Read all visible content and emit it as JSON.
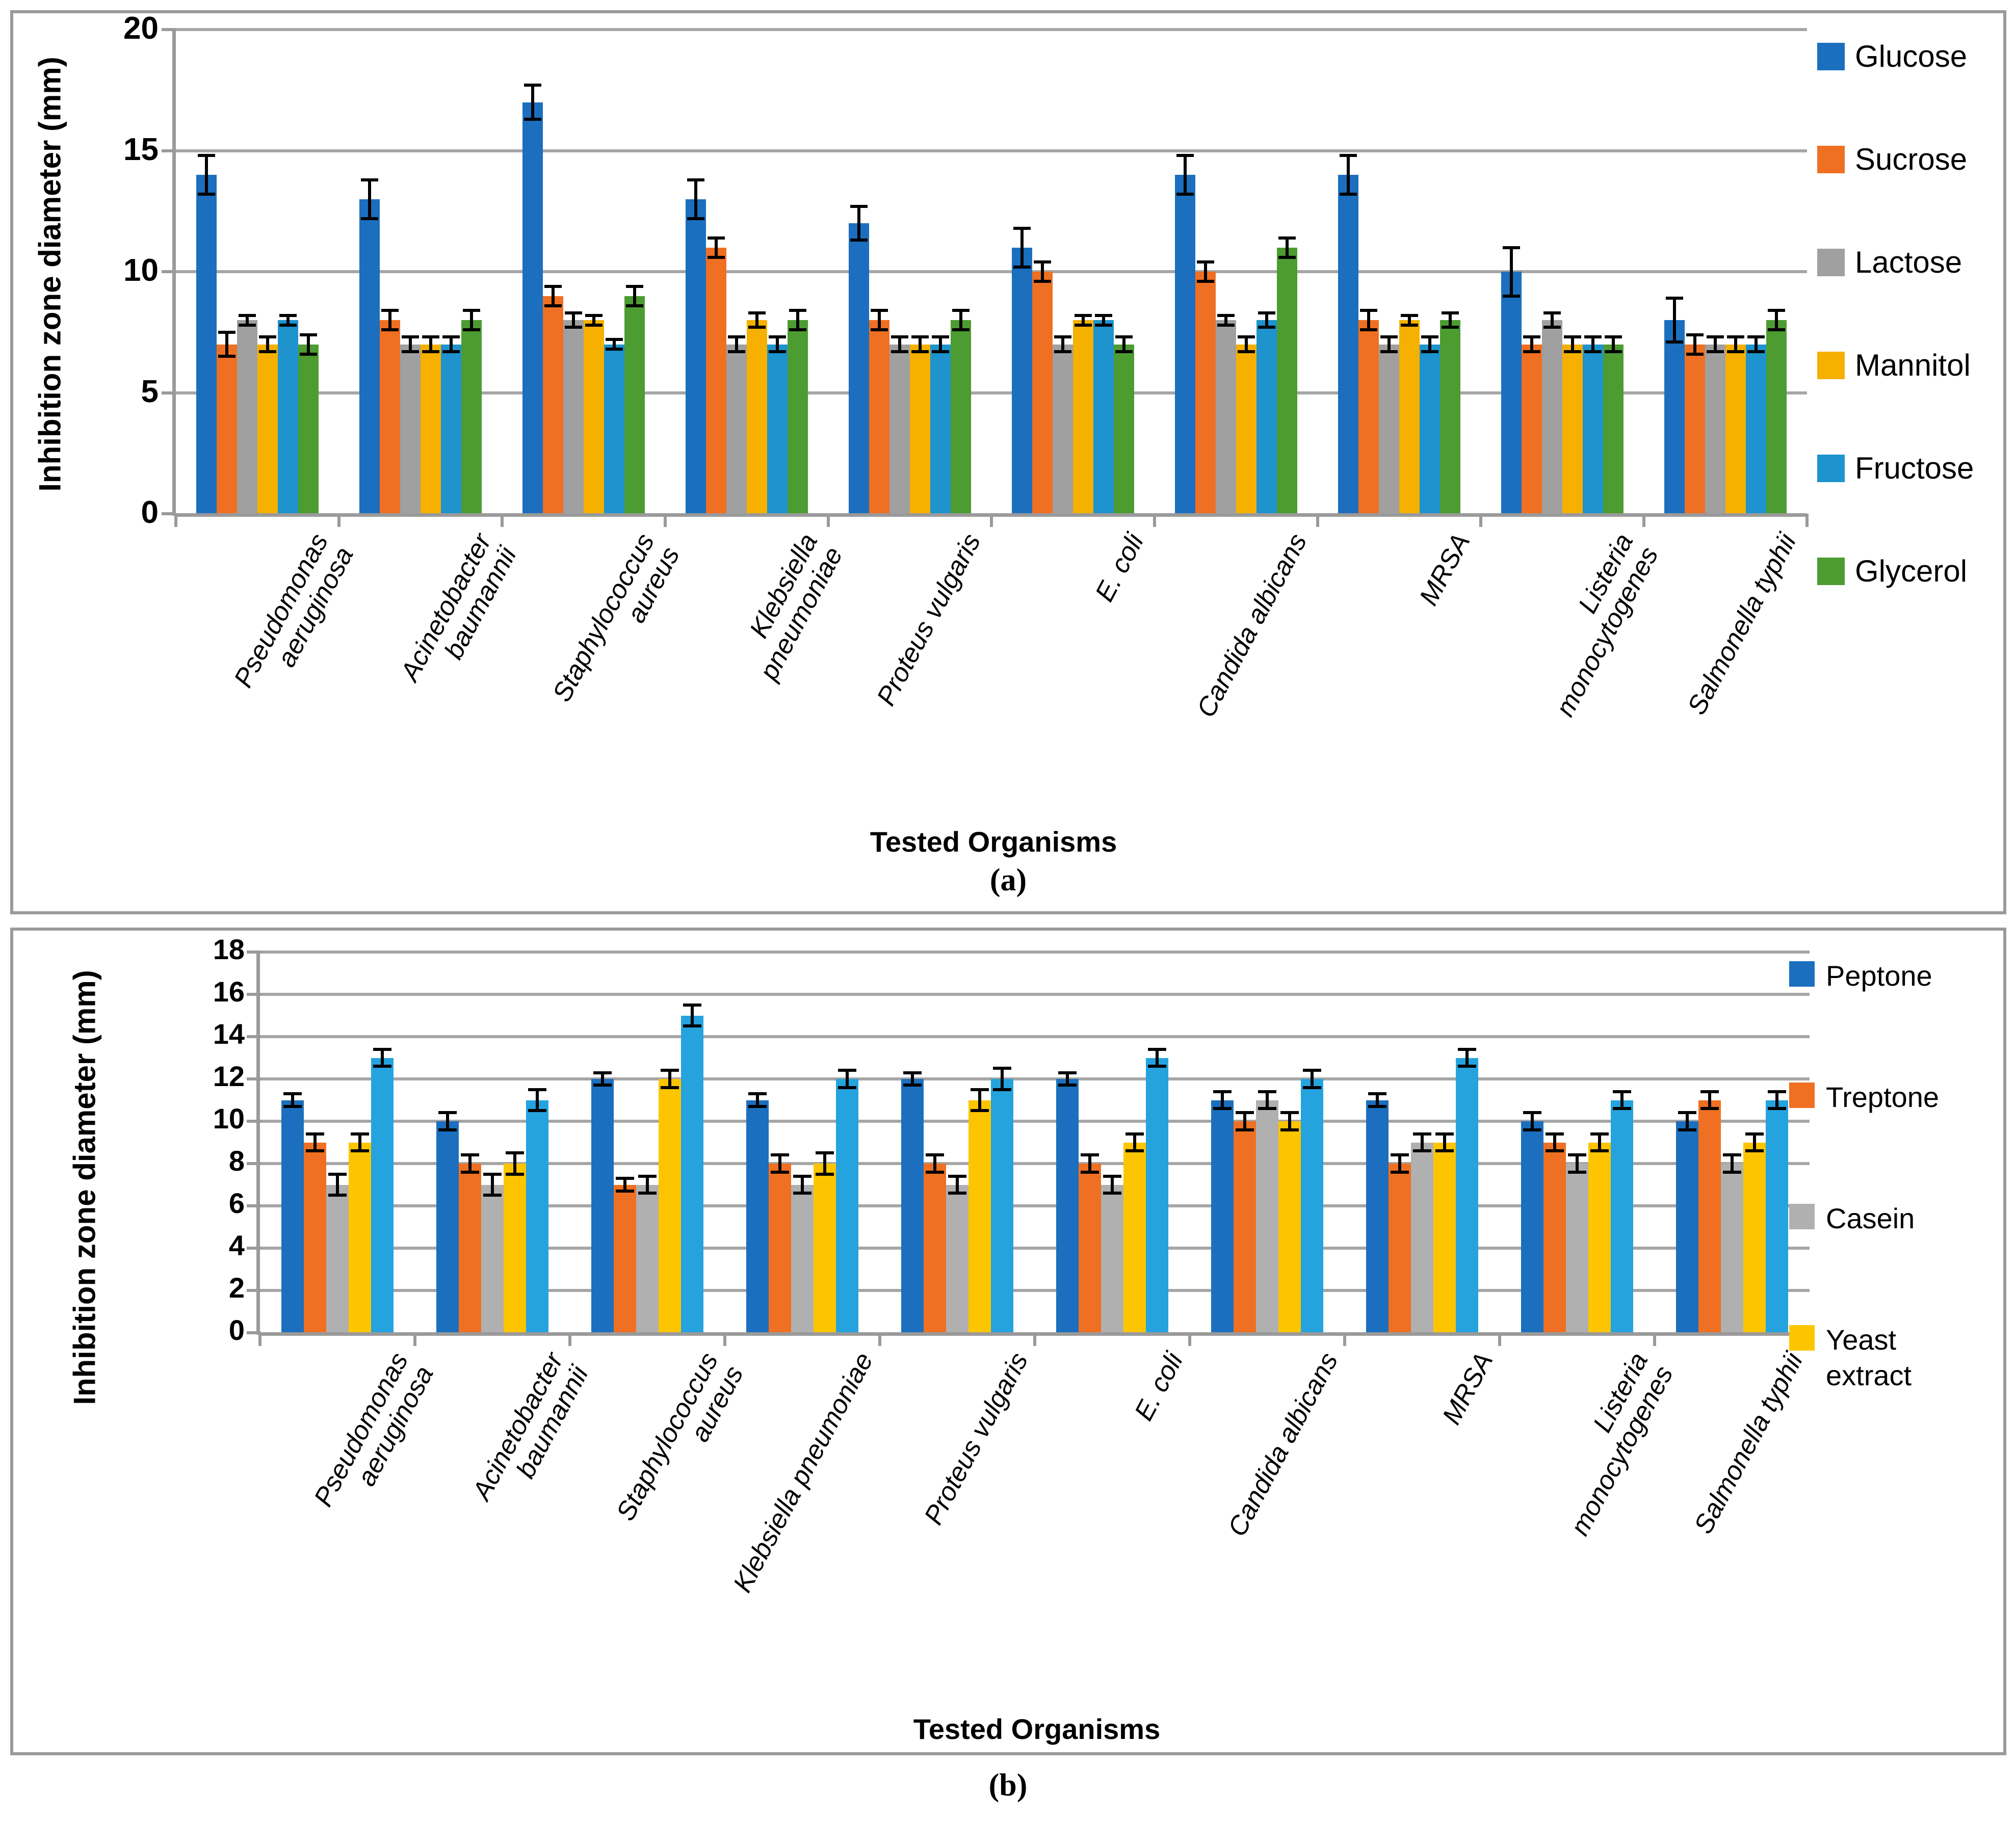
{
  "page": {
    "caption_a": "(a)",
    "caption_b": "(b)",
    "background": "#ffffff"
  },
  "chart_data": [
    {
      "id": "a",
      "type": "bar",
      "title": "",
      "xlabel": "Tested Organisms",
      "ylabel": "Inhibition zone diameter (mm)",
      "ylim": [
        0,
        20
      ],
      "ytick_step": 5,
      "grid": true,
      "legend_position": "right",
      "caption": "(a)",
      "error_bars": true,
      "categories": [
        [
          "Pseudomonas",
          "aeruginosa"
        ],
        [
          "Acinetobacter",
          "baumannii"
        ],
        [
          "Staphylococcus",
          "aureus"
        ],
        [
          "Klebsiella",
          "pneumoniae"
        ],
        [
          "Proteus vulgaris"
        ],
        [
          "E. coli"
        ],
        [
          "Candida albicans"
        ],
        [
          "MRSA"
        ],
        [
          "Listeria",
          "monocytogenes"
        ],
        [
          "Salmonella typhii"
        ]
      ],
      "series": [
        {
          "name": "Glucose",
          "color": "#1b6fbe",
          "in_legend": true,
          "values": [
            14,
            13,
            17,
            13,
            12,
            11,
            14,
            14,
            10,
            8
          ],
          "errors": [
            0.8,
            0.8,
            0.7,
            0.8,
            0.7,
            0.8,
            0.8,
            0.8,
            1.0,
            0.9
          ]
        },
        {
          "name": "Sucrose",
          "color": "#ef7022",
          "in_legend": true,
          "values": [
            7,
            8,
            9,
            11,
            8,
            10,
            10,
            8,
            7,
            7
          ],
          "errors": [
            0.5,
            0.4,
            0.4,
            0.4,
            0.4,
            0.4,
            0.4,
            0.4,
            0.3,
            0.4
          ]
        },
        {
          "name": "Lactose",
          "color": "#a0a0a0",
          "in_legend": true,
          "values": [
            8,
            7,
            8,
            7,
            7,
            7,
            8,
            7,
            8,
            7
          ],
          "errors": [
            0.2,
            0.3,
            0.3,
            0.3,
            0.3,
            0.3,
            0.2,
            0.3,
            0.3,
            0.3
          ]
        },
        {
          "name": "Mannitol",
          "color": "#f5b000",
          "in_legend": true,
          "values": [
            7,
            7,
            8,
            8,
            7,
            8,
            7,
            8,
            7,
            7
          ],
          "errors": [
            0.3,
            0.3,
            0.2,
            0.3,
            0.3,
            0.2,
            0.3,
            0.2,
            0.3,
            0.3
          ]
        },
        {
          "name": "Fructose",
          "color": "#1e93ce",
          "in_legend": true,
          "values": [
            8,
            7,
            7,
            7,
            7,
            8,
            8,
            7,
            7,
            7
          ],
          "errors": [
            0.2,
            0.3,
            0.2,
            0.3,
            0.3,
            0.2,
            0.3,
            0.3,
            0.3,
            0.3
          ]
        },
        {
          "name": "Glycerol",
          "color": "#4c9c31",
          "in_legend": true,
          "values": [
            7,
            8,
            9,
            8,
            8,
            7,
            11,
            8,
            7,
            8
          ],
          "errors": [
            0.4,
            0.4,
            0.4,
            0.4,
            0.4,
            0.3,
            0.4,
            0.3,
            0.3,
            0.4
          ]
        }
      ]
    },
    {
      "id": "b",
      "type": "bar",
      "title": "",
      "xlabel": "Tested Organisms",
      "ylabel": "Inhibition zone diameter (mm)",
      "ylim": [
        0,
        18
      ],
      "ytick_step": 2,
      "grid": true,
      "legend_position": "right",
      "caption": "(b)",
      "error_bars": true,
      "categories": [
        [
          "Pseudomonas",
          "aeruginosa"
        ],
        [
          "Acinetobacter",
          "baumannii"
        ],
        [
          "Staphylococcus",
          "aureus"
        ],
        [
          "Klebsiella pneumoniae"
        ],
        [
          "Proteus vulgaris"
        ],
        [
          "E. coli"
        ],
        [
          "Candida albicans"
        ],
        [
          "MRSA"
        ],
        [
          "Listeria",
          "monocytogenes"
        ],
        [
          "Salmonella typhii"
        ]
      ],
      "series": [
        {
          "name": "Peptone",
          "color": "#1b6fbe",
          "in_legend": true,
          "values": [
            11,
            10,
            12,
            11,
            12,
            12,
            11,
            11,
            10,
            10
          ],
          "errors": [
            0.3,
            0.4,
            0.3,
            0.3,
            0.3,
            0.3,
            0.4,
            0.3,
            0.4,
            0.4
          ]
        },
        {
          "name": "Treptone",
          "color": "#ef7022",
          "in_legend": true,
          "values": [
            9,
            8,
            7,
            8,
            8,
            8,
            10,
            8,
            9,
            11
          ],
          "errors": [
            0.4,
            0.4,
            0.3,
            0.4,
            0.4,
            0.4,
            0.4,
            0.4,
            0.4,
            0.4
          ]
        },
        {
          "name": "Casein",
          "color": "#b0b0b0",
          "in_legend": true,
          "values": [
            7,
            7,
            7,
            7,
            7,
            7,
            11,
            9,
            8,
            8
          ],
          "errors": [
            0.5,
            0.5,
            0.4,
            0.4,
            0.4,
            0.4,
            0.4,
            0.4,
            0.4,
            0.4
          ]
        },
        {
          "name": "Yeast extract",
          "legend_lines": [
            "Yeast",
            "extract"
          ],
          "color": "#fdc500",
          "in_legend": true,
          "values": [
            9,
            8,
            12,
            8,
            11,
            9,
            10,
            9,
            9,
            9
          ],
          "errors": [
            0.4,
            0.5,
            0.4,
            0.5,
            0.5,
            0.4,
            0.4,
            0.4,
            0.4,
            0.4
          ]
        },
        {
          "name": "",
          "color": "#25a3de",
          "in_legend": false,
          "values": [
            13,
            11,
            15,
            12,
            12,
            13,
            12,
            13,
            11,
            11
          ],
          "errors": [
            0.4,
            0.5,
            0.5,
            0.4,
            0.5,
            0.4,
            0.4,
            0.4,
            0.4,
            0.4
          ]
        }
      ]
    }
  ]
}
